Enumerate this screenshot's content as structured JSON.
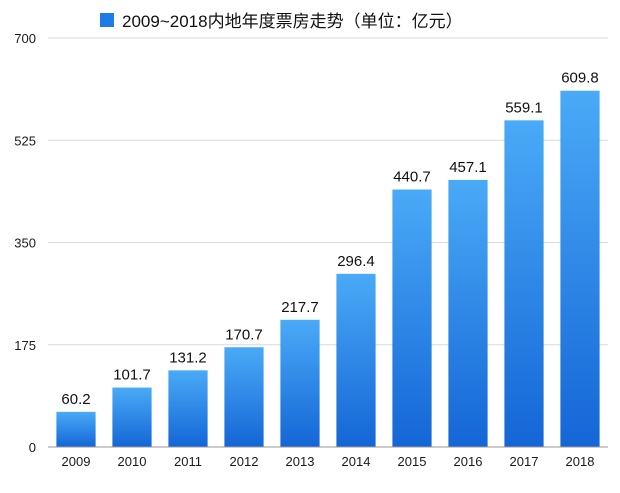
{
  "chart_data": {
    "type": "bar",
    "title": "2009~2018内地年度票房走势（单位：亿元）",
    "legend": {
      "entries": [
        "2009~2018内地年度票房走势（单位：亿元）"
      ],
      "placement": "top-center"
    },
    "categories": [
      "2009",
      "2010",
      "2011",
      "2012",
      "2013",
      "2014",
      "2015",
      "2016",
      "2017",
      "2018"
    ],
    "series": [
      {
        "name": "2009~2018内地年度票房走势（单位：亿元）",
        "values": [
          60.2,
          101.7,
          131.2,
          170.7,
          217.7,
          296.4,
          440.7,
          457.1,
          559.1,
          609.8
        ],
        "labels": [
          "60.2",
          "101.7",
          "131.2",
          "170.7",
          "217.7",
          "296.4",
          "440.7",
          "457.1",
          "559.1",
          "609.8"
        ]
      }
    ],
    "yticks": [
      "0",
      "175",
      "350",
      "525",
      "700"
    ],
    "ylim": [
      0,
      700
    ],
    "grid": true,
    "xlabel": "",
    "ylabel": "",
    "colors": {
      "bar_top": "#4aaaf6",
      "bar_bottom": "#1466d6",
      "legend_swatch": "#1e7be8"
    }
  }
}
